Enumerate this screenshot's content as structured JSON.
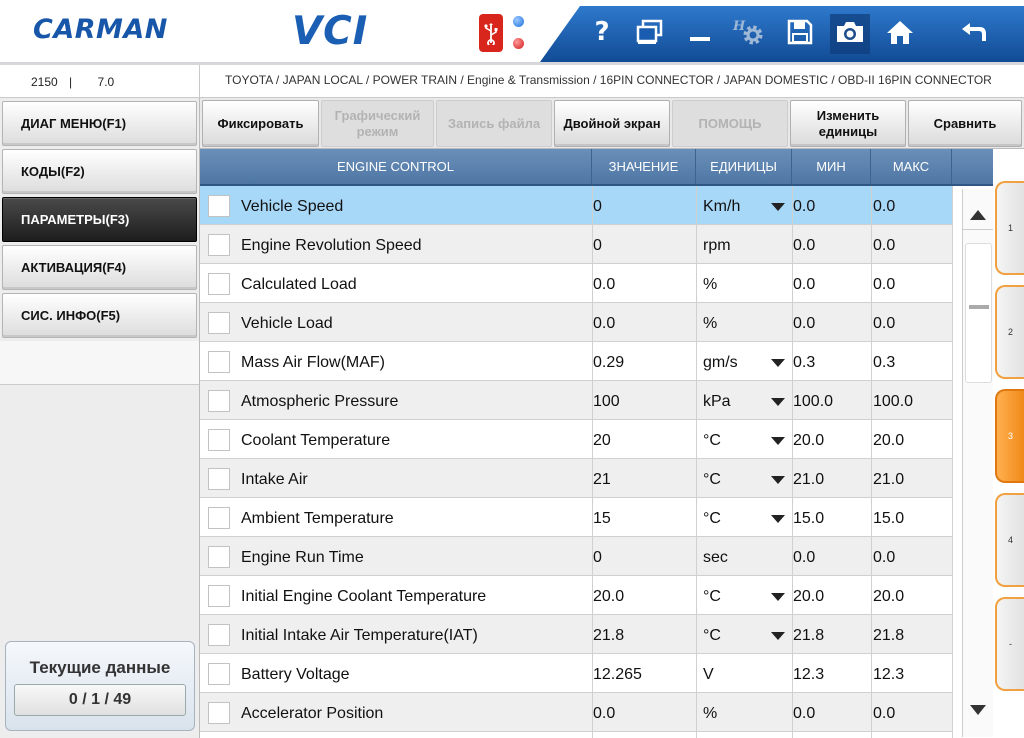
{
  "header": {
    "logo": "CARMAN",
    "title": "VCI",
    "toolbar": {
      "help_icon": "question-icon",
      "window_icon": "dual-window-icon",
      "minimize_icon": "minimize-icon",
      "settings_icon": "settings-gear-icon",
      "save_icon": "floppy-disk-icon",
      "camera_icon": "camera-icon",
      "home_icon": "home-icon",
      "back_icon": "back-arrow-icon",
      "help_label": "?"
    },
    "colors": {
      "brand": "#1756a8",
      "toolbar_band": "#1a5db0",
      "usb": "#d9261c"
    }
  },
  "infobar": {
    "firmware_a": "2150",
    "firmware_sep": "|",
    "firmware_b": "7.0",
    "breadcrumb": "TOYOTA / JAPAN LOCAL / POWER TRAIN / Engine & Transmission / 16PIN CONNECTOR / JAPAN DOMESTIC / OBD-II 16PIN CONNECTOR"
  },
  "sidebar": {
    "items": [
      {
        "label": "ДИАГ МЕНЮ(F1)",
        "active": false
      },
      {
        "label": "КОДЫ(F2)",
        "active": false
      },
      {
        "label": "ПАРАМЕТРЫ(F3)",
        "active": true
      },
      {
        "label": "АКТИВАЦИЯ(F4)",
        "active": false
      },
      {
        "label": "СИС. ИНФО(F5)",
        "active": false
      }
    ],
    "status": {
      "title": "Текущие данные",
      "count": "0 / 1 / 49"
    }
  },
  "funcbar": {
    "buttons": [
      {
        "label": "Фиксировать",
        "enabled": true
      },
      {
        "label": "Графический режим",
        "enabled": false
      },
      {
        "label": "Запись файла",
        "enabled": false
      },
      {
        "label": "Двойной экран",
        "enabled": true
      },
      {
        "label": "ПОМОЩЬ",
        "enabled": false
      },
      {
        "label": "Изменить единицы",
        "enabled": true
      },
      {
        "label": "Сравнить",
        "enabled": true
      }
    ]
  },
  "table": {
    "headers": {
      "name": "ENGINE CONTROL",
      "value": "ЗНАЧЕНИЕ",
      "unit": "ЕДИНИЦЫ",
      "min": "МИН",
      "max": "МАКС"
    },
    "rows": [
      {
        "name": "Vehicle Speed",
        "value": "0",
        "unit": "Km/h",
        "dropdown": true,
        "min": "0.0",
        "max": "0.0",
        "selected": true
      },
      {
        "name": "Engine Revolution Speed",
        "value": "0",
        "unit": "rpm",
        "dropdown": false,
        "min": "0.0",
        "max": "0.0"
      },
      {
        "name": "Calculated Load",
        "value": "0.0",
        "unit": "%",
        "dropdown": false,
        "min": "0.0",
        "max": "0.0"
      },
      {
        "name": "Vehicle Load",
        "value": "0.0",
        "unit": "%",
        "dropdown": false,
        "min": "0.0",
        "max": "0.0"
      },
      {
        "name": "Mass Air Flow(MAF)",
        "value": "0.29",
        "unit": "gm/s",
        "dropdown": true,
        "min": "0.3",
        "max": "0.3"
      },
      {
        "name": "Atmospheric Pressure",
        "value": "100",
        "unit": "kPa",
        "dropdown": true,
        "min": "100.0",
        "max": "100.0"
      },
      {
        "name": "Coolant Temperature",
        "value": "20",
        "unit": "°C",
        "dropdown": true,
        "min": "20.0",
        "max": "20.0"
      },
      {
        "name": "Intake Air",
        "value": "21",
        "unit": "°C",
        "dropdown": true,
        "min": "21.0",
        "max": "21.0"
      },
      {
        "name": "Ambient Temperature",
        "value": "15",
        "unit": "°C",
        "dropdown": true,
        "min": "15.0",
        "max": "15.0"
      },
      {
        "name": "Engine Run Time",
        "value": "0",
        "unit": "sec",
        "dropdown": false,
        "min": "0.0",
        "max": "0.0"
      },
      {
        "name": "Initial Engine Coolant Temperature",
        "value": "20.0",
        "unit": "°C",
        "dropdown": true,
        "min": "20.0",
        "max": "20.0"
      },
      {
        "name": "Initial Intake Air Temperature(IAT)",
        "value": "21.8",
        "unit": "°C",
        "dropdown": true,
        "min": "21.8",
        "max": "21.8"
      },
      {
        "name": "Battery Voltage",
        "value": "12.265",
        "unit": "V",
        "dropdown": false,
        "min": "12.3",
        "max": "12.3"
      },
      {
        "name": "Accelerator Position",
        "value": "0.0",
        "unit": "%",
        "dropdown": false,
        "min": "0.0",
        "max": "0.0"
      }
    ]
  },
  "page_tabs": [
    {
      "label": "1",
      "active": false
    },
    {
      "label": "2",
      "active": false
    },
    {
      "label": "3",
      "active": true
    },
    {
      "label": "4",
      "active": false
    },
    {
      "label": "-",
      "active": false
    }
  ]
}
